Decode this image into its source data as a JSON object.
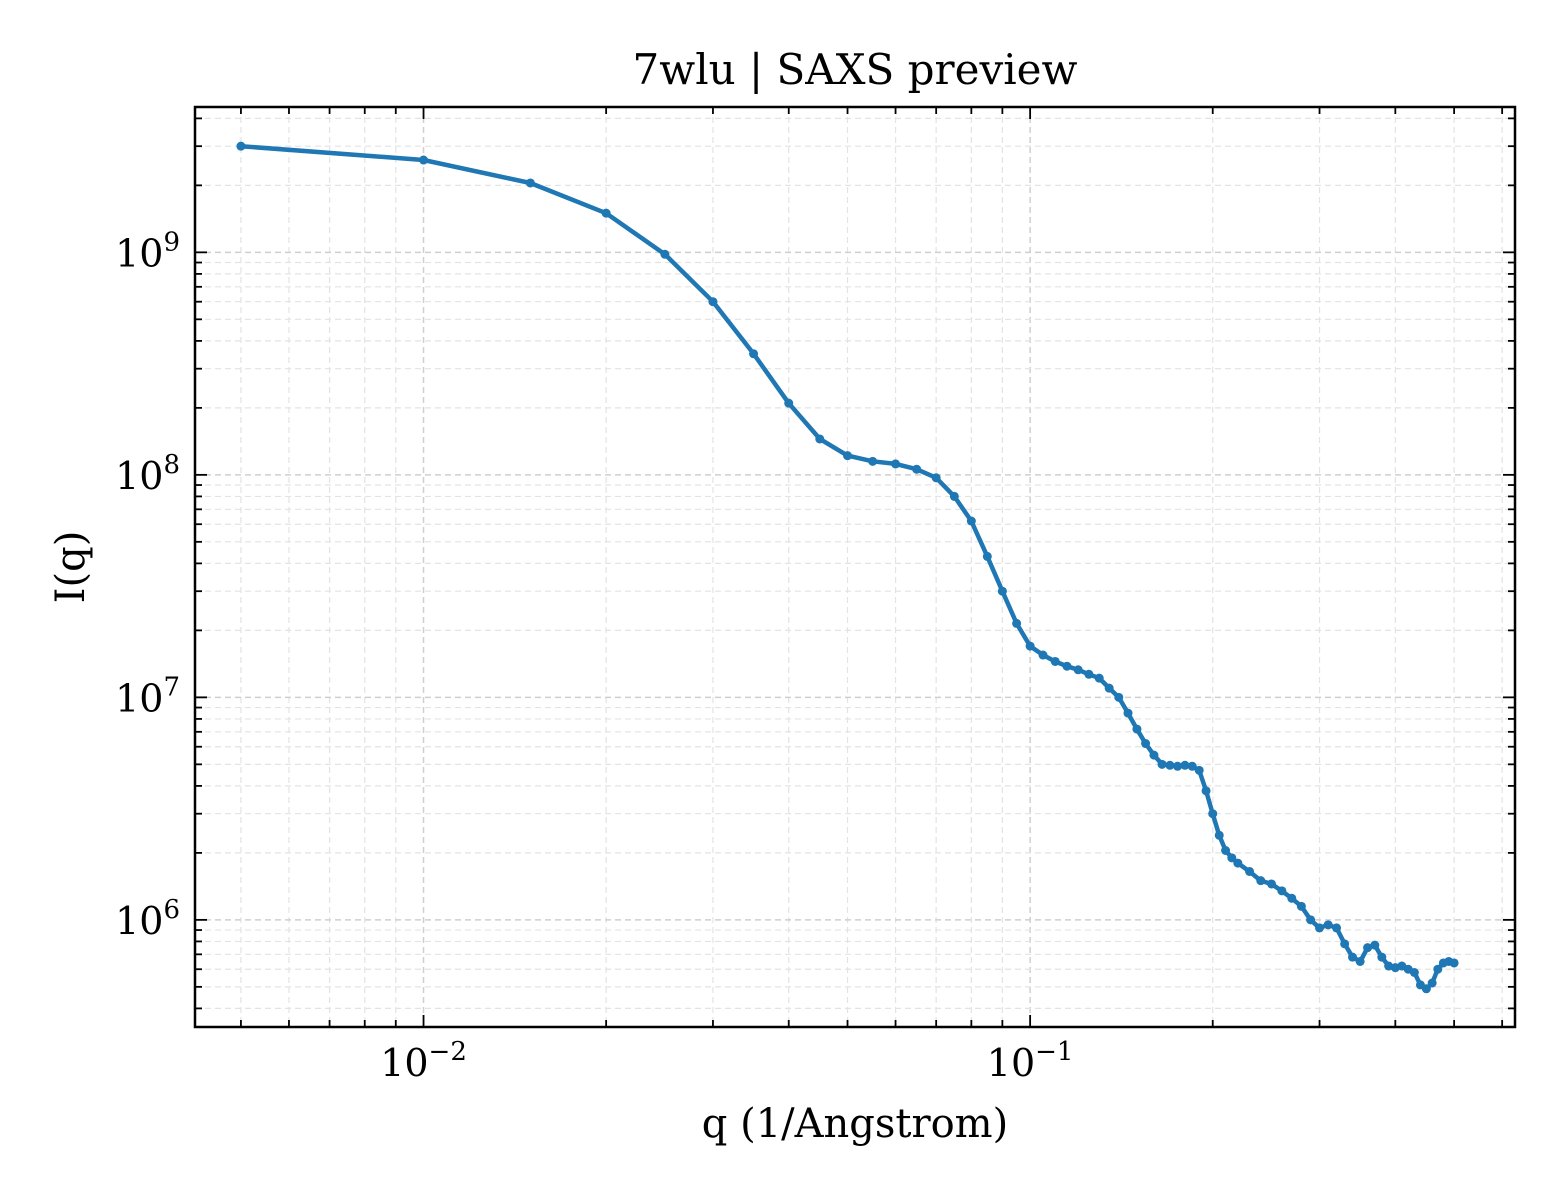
{
  "chart_data": {
    "type": "line",
    "title": "7wlu | SAXS preview",
    "xlabel": "q (1/Angstrom)",
    "ylabel": "I(q)",
    "xscale": "log",
    "yscale": "log",
    "xlim": [
      0.0042,
      0.63
    ],
    "ylim": [
      330000,
      4500000000
    ],
    "grid": true,
    "legend": "none",
    "color": "#1f77b4",
    "x_ticks": [
      {
        "value": 0.01,
        "base": "10",
        "exp": "−2"
      },
      {
        "value": 0.1,
        "base": "10",
        "exp": "−1"
      }
    ],
    "y_ticks": [
      {
        "value": 1000000,
        "base": "10",
        "exp": "6"
      },
      {
        "value": 10000000,
        "base": "10",
        "exp": "7"
      },
      {
        "value": 100000000,
        "base": "10",
        "exp": "8"
      },
      {
        "value": 1000000000,
        "base": "10",
        "exp": "9"
      }
    ],
    "series": [
      {
        "x": [
          0.005,
          0.01,
          0.015,
          0.02,
          0.025,
          0.03,
          0.035,
          0.04,
          0.045,
          0.05,
          0.055,
          0.06,
          0.065,
          0.07,
          0.075,
          0.08,
          0.085,
          0.09,
          0.095,
          0.1,
          0.105,
          0.11,
          0.115,
          0.12,
          0.125,
          0.13,
          0.135,
          0.14,
          0.145,
          0.15,
          0.155,
          0.16,
          0.165,
          0.17,
          0.175,
          0.18,
          0.185,
          0.19,
          0.195,
          0.2,
          0.205,
          0.21,
          0.215,
          0.22,
          0.23,
          0.24,
          0.25,
          0.26,
          0.27,
          0.28,
          0.29,
          0.3,
          0.31,
          0.32,
          0.33,
          0.34,
          0.35,
          0.36,
          0.37,
          0.38,
          0.39,
          0.4,
          0.41,
          0.42,
          0.43,
          0.44,
          0.45,
          0.46,
          0.47,
          0.48,
          0.49,
          0.5
        ],
        "y": [
          3000000000,
          2600000000,
          2050000000,
          1500000000,
          980000000,
          600000000,
          350000000,
          210000000,
          145000000,
          122000000,
          115000000,
          112000000,
          106000000,
          97000000,
          80000000,
          62000000,
          43000000,
          30000000,
          21500000,
          17000000,
          15500000,
          14500000,
          13800000,
          13300000,
          12700000,
          12200000,
          11000000,
          10000000,
          8500000,
          7200000,
          6200000,
          5500000,
          5000000,
          4950000,
          4900000,
          4950000,
          4900000,
          4700000,
          3800000,
          3000000,
          2400000,
          2050000,
          1900000,
          1800000,
          1650000,
          1500000,
          1450000,
          1350000,
          1250000,
          1150000,
          1000000,
          920000,
          950000,
          920000,
          780000,
          680000,
          650000,
          750000,
          770000,
          680000,
          620000,
          610000,
          620000,
          600000,
          580000,
          510000,
          490000,
          520000,
          600000,
          640000,
          650000,
          640000
        ]
      }
    ]
  }
}
